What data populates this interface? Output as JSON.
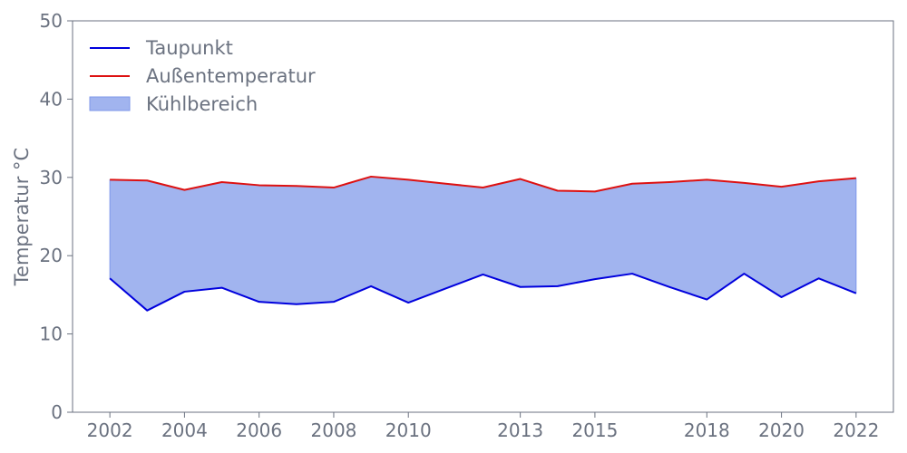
{
  "chart_data": {
    "type": "line",
    "title": "",
    "xlabel": "",
    "ylabel": "Temperatur °C",
    "x": [
      2002,
      2003,
      2004,
      2005,
      2006,
      2007,
      2008,
      2009,
      2010,
      2011,
      2012,
      2013,
      2014,
      2015,
      2016,
      2017,
      2018,
      2019,
      2020,
      2021,
      2022
    ],
    "x_ticks": [
      2002,
      2004,
      2006,
      2008,
      2010,
      2013,
      2015,
      2018,
      2020,
      2022
    ],
    "y_ticks": [
      0,
      10,
      20,
      30,
      40,
      50
    ],
    "xlim": [
      2001,
      2023
    ],
    "ylim": [
      0,
      50
    ],
    "series": [
      {
        "name": "Taupunkt",
        "color": "#0000dd",
        "values": [
          17.1,
          13.0,
          15.4,
          15.9,
          14.1,
          13.8,
          14.1,
          16.1,
          14.0,
          15.8,
          17.6,
          16.0,
          16.1,
          17.0,
          17.7,
          16.0,
          14.4,
          17.7,
          14.7,
          17.1,
          15.2
        ]
      },
      {
        "name": "Außentemperatur",
        "color": "#dd1111",
        "values": [
          29.7,
          29.6,
          28.4,
          29.4,
          29.0,
          28.9,
          28.7,
          30.1,
          29.7,
          29.2,
          28.7,
          29.8,
          28.3,
          28.2,
          29.2,
          29.4,
          29.7,
          29.3,
          28.8,
          29.5,
          29.9
        ]
      }
    ],
    "fill_between": {
      "name": "Kühlbereich",
      "color": "#a1b4ef",
      "edge_color": "#7f97ea",
      "lower": "Taupunkt",
      "upper": "Außentemperatur"
    },
    "grid": false,
    "legend_position": "top-left",
    "axis_color": "#6b7280"
  }
}
